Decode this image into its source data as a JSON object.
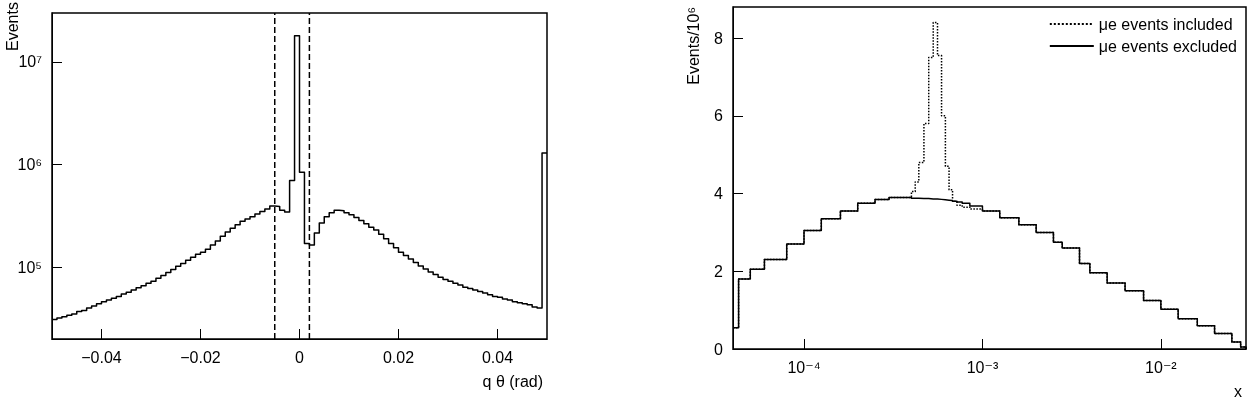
{
  "chart_data": [
    {
      "type": "histogram",
      "ylabel": "Events",
      "xlabel": "q θ (rad)",
      "log": "y",
      "line_style": "solid",
      "color": "#000000",
      "bins": [
        -0.05,
        -0.049,
        -0.048,
        -0.047,
        -0.046,
        -0.045,
        -0.044,
        -0.043,
        -0.042,
        -0.041,
        -0.04,
        -0.039,
        -0.038,
        -0.037,
        -0.036,
        -0.035,
        -0.034,
        -0.033,
        -0.032,
        -0.031,
        -0.03,
        -0.029,
        -0.028,
        -0.027,
        -0.026,
        -0.025,
        -0.024,
        -0.023,
        -0.022,
        -0.021,
        -0.02,
        -0.019,
        -0.018,
        -0.017,
        -0.016,
        -0.015,
        -0.014,
        -0.013,
        -0.012,
        -0.011,
        -0.01,
        -0.009,
        -0.008,
        -0.007,
        -0.006,
        -0.005,
        -0.004,
        -0.003,
        -0.002,
        -0.001,
        0,
        0.001,
        0.002,
        0.003,
        0.004,
        0.005,
        0.006,
        0.007,
        0.008,
        0.009,
        0.01,
        0.011,
        0.012,
        0.013,
        0.014,
        0.015,
        0.016,
        0.017,
        0.018,
        0.019,
        0.02,
        0.021,
        0.022,
        0.023,
        0.024,
        0.025,
        0.026,
        0.027,
        0.028,
        0.029,
        0.03,
        0.031,
        0.032,
        0.033,
        0.034,
        0.035,
        0.036,
        0.037,
        0.038,
        0.039,
        0.04,
        0.041,
        0.042,
        0.043,
        0.044,
        0.045,
        0.046,
        0.047,
        0.048,
        0.049,
        0.05
      ],
      "values": [
        31000,
        32000,
        33000,
        34000,
        35000,
        37000,
        38000,
        40000,
        42000,
        44000,
        46000,
        48000,
        50000,
        52000,
        55000,
        57000,
        60000,
        63000,
        66000,
        70000,
        73000,
        78000,
        83000,
        89000,
        95000,
        102000,
        109000,
        117000,
        125000,
        134000,
        140000,
        150000,
        165000,
        180000,
        200000,
        220000,
        240000,
        260000,
        280000,
        295000,
        310000,
        330000,
        350000,
        370000,
        395000,
        390000,
        360000,
        345000,
        700000,
        18000000,
        840000,
        170000,
        165000,
        215000,
        270000,
        310000,
        340000,
        360000,
        355000,
        340000,
        325000,
        305000,
        285000,
        265000,
        245000,
        230000,
        210000,
        190000,
        170000,
        155000,
        140000,
        130000,
        120000,
        111000,
        103000,
        96000,
        90000,
        85000,
        80000,
        76000,
        73000,
        70000,
        67000,
        64000,
        62000,
        60000,
        58000,
        56000,
        54000,
        52000,
        51000,
        49000,
        48000,
        46000,
        45000,
        44000,
        43000,
        41000,
        40000,
        1300000
      ],
      "xlim": [
        -0.05,
        0.05
      ],
      "ylim": [
        20000,
        30000000
      ],
      "xticks": [
        {
          "value": -0.04,
          "label": "−0.04"
        },
        {
          "value": -0.02,
          "label": "−0.02"
        },
        0,
        0.02,
        0.04
      ],
      "yticks": [
        {
          "value": 100000,
          "label": "10⁵"
        },
        {
          "value": 1000000,
          "label": "10⁶"
        },
        {
          "value": 10000000,
          "label": "10⁷"
        }
      ],
      "ref_lines": [
        {
          "axis": "x",
          "value": -0.005,
          "line_style": "dashed",
          "color": "#000000"
        },
        {
          "axis": "x",
          "value": 0.002,
          "line_style": "dashed",
          "color": "#000000"
        }
      ],
      "grid": false,
      "legend": false
    },
    {
      "type": "step",
      "ylabel": "Events/10⁶",
      "xlabel": "x",
      "log": "x",
      "legend": "top right",
      "grid": false,
      "x": [
        4e-05,
        4.3e-05,
        5e-05,
        6e-05,
        8e-05,
        0.0001,
        0.000125,
        0.00016,
        0.0002,
        0.00025,
        0.0003,
        0.0004,
        0.00042,
        0.00044,
        0.00047,
        0.0005,
        0.00053,
        0.00056,
        0.00059,
        0.00062,
        0.00065,
        0.00068,
        0.00072,
        0.00077,
        0.00085,
        0.001,
        0.00125,
        0.0016,
        0.002,
        0.0025,
        0.0028,
        0.0035,
        0.004,
        0.005,
        0.0063,
        0.008,
        0.01,
        0.0125,
        0.016,
        0.02,
        0.025,
        0.028,
        0.03
      ],
      "series": [
        {
          "name": "μe events included",
          "color": "#000000",
          "line_style": "dotted",
          "values": [
            0.55,
            1.8,
            2.05,
            2.3,
            2.7,
            3.05,
            3.35,
            3.55,
            3.75,
            3.85,
            3.9,
            4.05,
            4.3,
            4.8,
            5.8,
            7.5,
            8.4,
            7.55,
            6.0,
            4.7,
            4.1,
            3.8,
            3.7,
            3.65,
            3.6,
            3.55,
            3.38,
            3.2,
            3.0,
            2.75,
            2.6,
            2.2,
            1.96,
            1.7,
            1.5,
            1.25,
            1.02,
            0.78,
            0.6,
            0.4,
            0.18,
            0.05,
            0
          ]
        },
        {
          "name": "μe events excluded",
          "color": "#000000",
          "line_style": "solid",
          "values": [
            0.55,
            1.8,
            2.05,
            2.3,
            2.7,
            3.05,
            3.35,
            3.55,
            3.75,
            3.85,
            3.9,
            3.88,
            3.88,
            3.87,
            3.87,
            3.86,
            3.86,
            3.85,
            3.84,
            3.83,
            3.82,
            3.8,
            3.78,
            3.75,
            3.68,
            3.55,
            3.38,
            3.2,
            3.0,
            2.75,
            2.6,
            2.2,
            1.96,
            1.7,
            1.5,
            1.25,
            1.02,
            0.78,
            0.6,
            0.4,
            0.18,
            0.05,
            0
          ]
        }
      ],
      "xlim": [
        4e-05,
        0.03
      ],
      "ylim": [
        0,
        8.8
      ],
      "xticks": [
        {
          "value": 0.0001,
          "label": "10⁻⁴"
        },
        {
          "value": 0.001,
          "label": "10⁻³"
        },
        {
          "value": 0.01,
          "label": "10⁻²"
        }
      ],
      "yticks": [
        0,
        2,
        4,
        6,
        8
      ]
    }
  ]
}
